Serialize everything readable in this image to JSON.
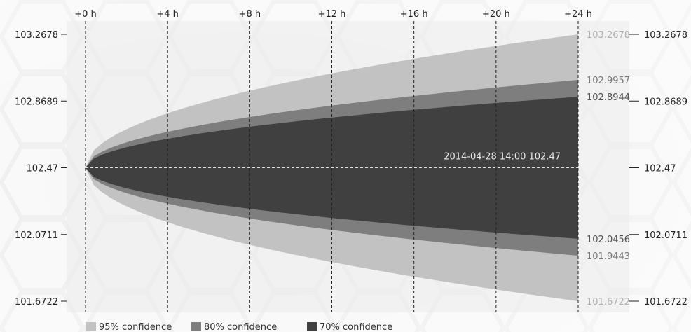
{
  "chart_data": {
    "type": "area",
    "title": "",
    "x_unit_suffix": " h",
    "x_prefix": "+",
    "x_ticks": [
      0,
      4,
      8,
      12,
      16,
      20,
      24
    ],
    "x_tick_labels": [
      "+0 h",
      "+4 h",
      "+8 h",
      "+12 h",
      "+16 h",
      "+20 h",
      "+24 h"
    ],
    "y_ticks": [
      101.6722,
      102.0711,
      102.47,
      102.8689,
      103.2678
    ],
    "y_tick_labels": [
      "101.6722",
      "102.0711",
      "102.47",
      "102.8689",
      "103.2678"
    ],
    "ylim": [
      101.6722,
      103.2678
    ],
    "xlim": [
      0,
      24
    ],
    "grid": "vertical-dashed",
    "center": {
      "value": 102.47,
      "label": "2014-04-28 14:00   102.47"
    },
    "bands": [
      {
        "name": "95% confidence",
        "upper_end": 103.2678,
        "lower_end": 101.6722,
        "upper_label": "103.2678",
        "lower_label": "101.6722",
        "color": "#c2c2c2",
        "label_color": "#b0b0b0"
      },
      {
        "name": "80% confidence",
        "upper_end": 102.9957,
        "lower_end": 101.9443,
        "upper_label": "102.9957",
        "lower_label": "101.9443",
        "color": "#7e7e7e",
        "label_color": "#777777"
      },
      {
        "name": "70% confidence",
        "upper_end": 102.8944,
        "lower_end": 102.0456,
        "upper_label": "102.8944",
        "lower_label": "102.0456",
        "color": "#404040",
        "label_color": "#505050"
      }
    ],
    "legend_position": "bottom-left"
  }
}
